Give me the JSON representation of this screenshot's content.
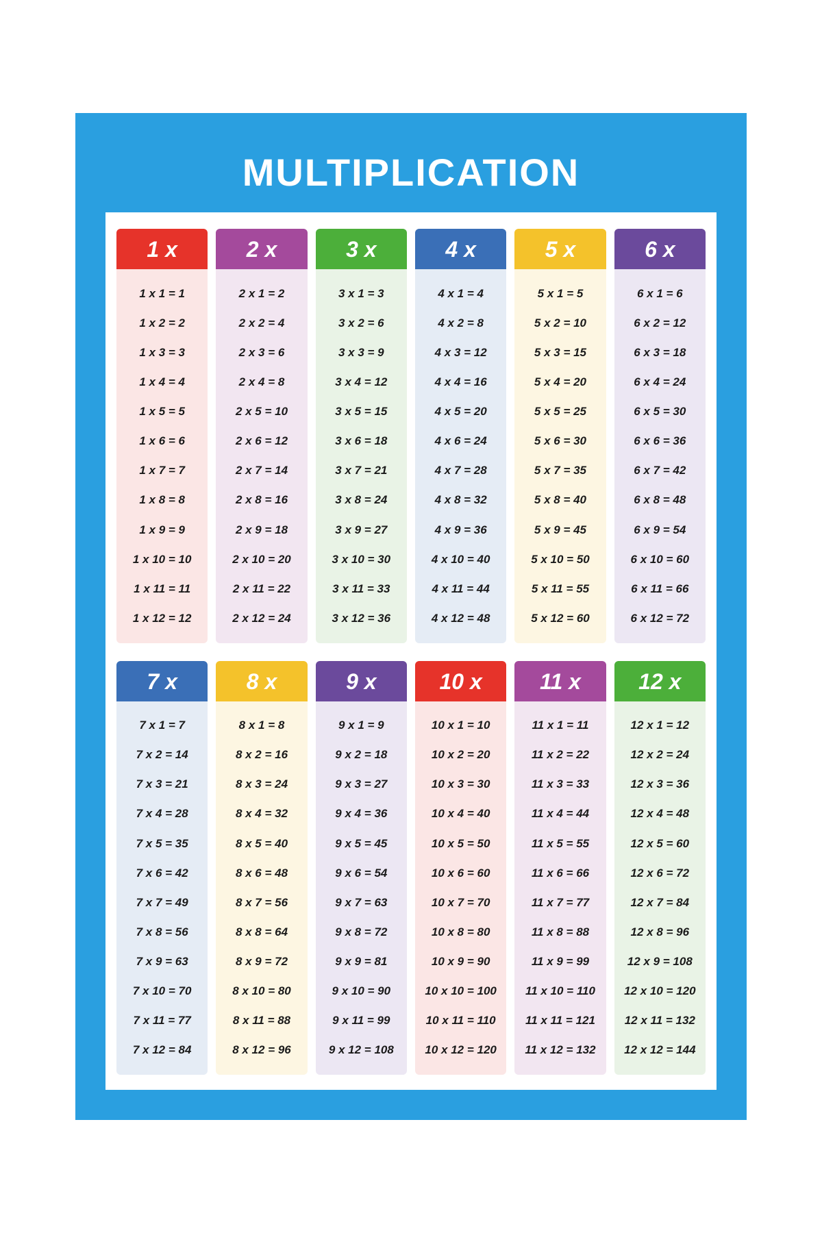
{
  "title": "MULTIPLICATION",
  "layout": {
    "poster_width": 980,
    "poster_height": 1470,
    "border_width": 26,
    "border_color": "#2a9fe0",
    "title_fontsize": 56,
    "header_fontsize": 32,
    "eq_fontsize": 17,
    "eq_color": "#1a1a1a",
    "panel_bg": "#ffffff"
  },
  "tables": [
    {
      "n": 1,
      "label": "1 x",
      "header_color": "#e6332a",
      "body_color": "#fbe6e5"
    },
    {
      "n": 2,
      "label": "2 x",
      "header_color": "#a44a9c",
      "body_color": "#f2e6f1"
    },
    {
      "n": 3,
      "label": "3 x",
      "header_color": "#4caf3a",
      "body_color": "#e9f3e6"
    },
    {
      "n": 4,
      "label": "4 x",
      "header_color": "#3a6fb7",
      "body_color": "#e5ecf5"
    },
    {
      "n": 5,
      "label": "5 x",
      "header_color": "#f4c22b",
      "body_color": "#fdf6e2"
    },
    {
      "n": 6,
      "label": "6 x",
      "header_color": "#6b4a9c",
      "body_color": "#ece7f3"
    },
    {
      "n": 7,
      "label": "7 x",
      "header_color": "#3a6fb7",
      "body_color": "#e5ecf5"
    },
    {
      "n": 8,
      "label": "8 x",
      "header_color": "#f4c22b",
      "body_color": "#fdf6e2"
    },
    {
      "n": 9,
      "label": "9 x",
      "header_color": "#6b4a9c",
      "body_color": "#ece7f3"
    },
    {
      "n": 10,
      "label": "10 x",
      "header_color": "#e6332a",
      "body_color": "#fbe6e5"
    },
    {
      "n": 11,
      "label": "11 x",
      "header_color": "#a44a9c",
      "body_color": "#f2e6f1"
    },
    {
      "n": 12,
      "label": "12 x",
      "header_color": "#4caf3a",
      "body_color": "#e9f3e6"
    }
  ],
  "multipliers": [
    1,
    2,
    3,
    4,
    5,
    6,
    7,
    8,
    9,
    10,
    11,
    12
  ]
}
